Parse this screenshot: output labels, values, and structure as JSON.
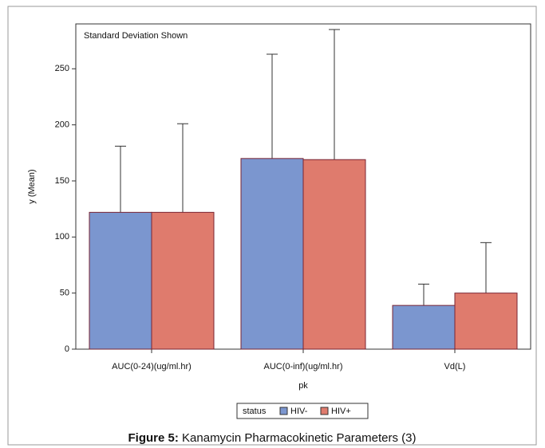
{
  "chart_data": {
    "type": "bar",
    "annotation": "Standard Deviation Shown",
    "x_label": "pk",
    "y_label": "y (Mean)",
    "categories": [
      "AUC(0-24)(ug/ml.hr)",
      "AUC(0-inf)(ug/ml.hr)",
      "Vd(L)"
    ],
    "legend_title": "status",
    "series": [
      {
        "name": "HIV-",
        "color": "#7b96cf",
        "values": [
          122,
          170,
          39
        ],
        "error": [
          59,
          93,
          19
        ]
      },
      {
        "name": "HIV+",
        "color": "#df7b6d",
        "values": [
          122,
          169,
          50
        ],
        "error": [
          79,
          116,
          45
        ]
      }
    ],
    "ylim": [
      0,
      290
    ],
    "yticks": [
      0,
      50,
      100,
      150,
      200,
      250
    ],
    "caption_label": "Figure 5:",
    "caption": "Kanamycin Pharmacokinetic Parameters (3)"
  }
}
